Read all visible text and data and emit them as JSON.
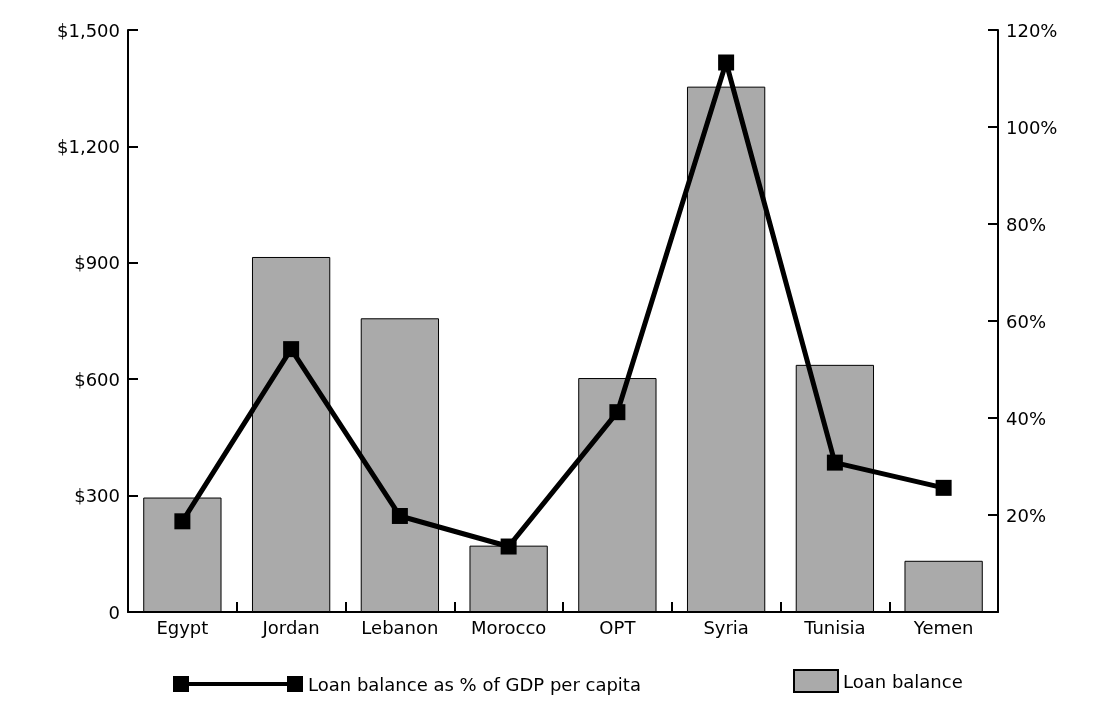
{
  "chart_data": {
    "type": "bar",
    "categories": [
      "Egypt",
      "Jordan",
      "Lebanon",
      "Morocco",
      "OPT",
      "Syria",
      "Tunisia",
      "Yemen"
    ],
    "series": [
      {
        "name": "Loan balance as % of GDP per capita",
        "type": "line",
        "axis": "y2",
        "color": "#000000",
        "marker": "square",
        "values": [
          18.7,
          54.2,
          19.8,
          13.5,
          41.2,
          113.3,
          30.8,
          25.6
        ]
      },
      {
        "name": "Loan balance",
        "color": "#aaaaaa",
        "values": [
          295,
          915,
          757,
          171,
          603,
          1354,
          637,
          132
        ]
      }
    ],
    "ylim": [
      0,
      1500
    ],
    "yticks": [
      {
        "value": 0,
        "label": "0"
      },
      {
        "value": 300,
        "label": "$300"
      },
      {
        "value": 600,
        "label": "$600"
      },
      {
        "value": 900,
        "label": "$900"
      },
      {
        "value": 1200,
        "label": "$1,200"
      },
      {
        "value": 1500,
        "label": "$1,500"
      }
    ],
    "y2lim": [
      0,
      120
    ],
    "y2ticks": [
      {
        "value": 20,
        "label": "20%"
      },
      {
        "value": 40,
        "label": "40%"
      },
      {
        "value": 60,
        "label": "60%"
      },
      {
        "value": 80,
        "label": "80%"
      },
      {
        "value": 100,
        "label": "100%"
      },
      {
        "value": 120,
        "label": "120%"
      }
    ],
    "grid": false,
    "legend": "bottom"
  }
}
